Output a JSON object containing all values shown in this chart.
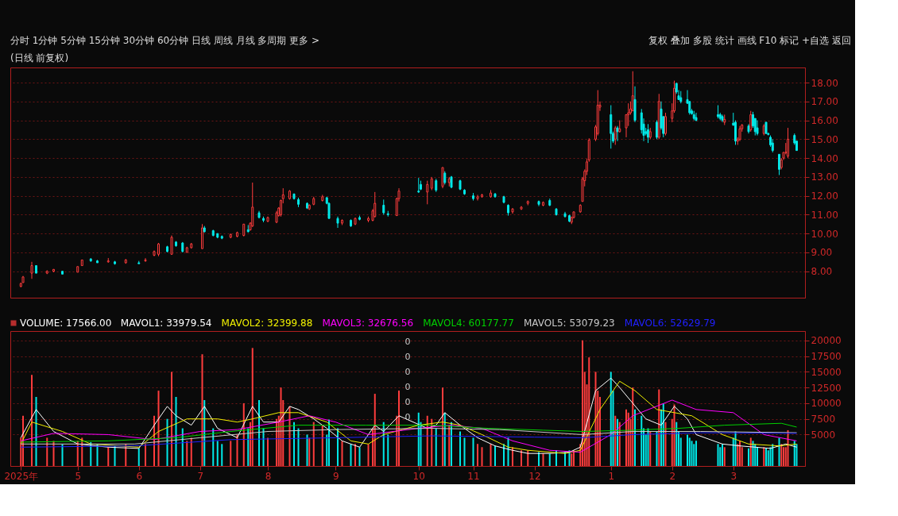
{
  "chart_data": [
    {
      "type": "candlestick",
      "title": "(日线 前复权)",
      "annotations": [
        "分时  1分钟  5分钟  15分钟  30分钟  60分钟  日线  周线  月线  多周期  更多 >",
        "复权  叠加  多股  统计  画线  F10  标记  +自选  返回"
      ],
      "colors": [
        "#ff3c3c",
        "#ff3c3c",
        "#ff3c3c",
        "#00e8e8",
        "#ff3c3c",
        "#ff3c3c",
        "#00e8e8",
        "#ff3c3c",
        "#ff3c3c",
        "#00e8e8",
        "#00e8e8",
        "#ff3c3c",
        "#00e8e8",
        "#ff3c3c",
        "#00e8e8",
        "#ff3c3c",
        "#ff3c3c",
        "#ff3c3c",
        "#00e8e8",
        "#ff3c3c",
        "#00e8e8",
        "#00e8e8",
        "#ff3c3c",
        "#ff3c3c",
        "#ff3c3c",
        "#00e8e8",
        "#00e8e8",
        "#00e8e8",
        "#00e8e8",
        "#ff3c3c",
        "#ff3c3c",
        "#ff3c3c",
        "#00e8e8",
        "#ff3c3c",
        "#ff3c3c",
        "#00e8e8",
        "#00e8e8",
        "#ff3c3c",
        "#ff3c3c",
        "#ff3c3c",
        "#ff3c3c",
        "#ff3c3c",
        "#ff3c3c",
        "#00e8e8",
        "#00e8e8",
        "#00e8e8",
        "#ff3c3c",
        "#ff3c3c",
        "#ff3c3c",
        "#00e8e8",
        "#00e8e8",
        "#00e8e8",
        "#ff3c3c",
        "#00e8e8",
        "#ff3c3c",
        "#00e8e8",
        "#ff3c3c",
        "#ff3c3c",
        "#ff3c3c",
        "#00e8e8",
        "#00e8e8",
        "#ff3c3c",
        "#ff3c3c",
        "#00e8e8",
        "#00e8e8",
        "#ff3c3c",
        "#ff3c3c",
        "#00e8e8",
        "#ff3c3c",
        "#00e8e8",
        "#ff3c3c",
        "#00e8e8",
        "#00e8e8",
        "#00e8e8",
        "#00e8e8",
        "#ff3c3c",
        "#ff3c3c",
        "#ff3c3c",
        "#00e8e8",
        "#00e8e8",
        "#00e8e8",
        "#ff3c3c",
        "#ff3c3c",
        "#ff3c3c",
        "#00e8e8",
        "#ff3c3c",
        "#00e8e8",
        "#00e8e8",
        "#00e8e8",
        "#00e8e8",
        "#ff3c3c",
        "#ff3c3c",
        "#ff3c3c",
        "#ff3c3c",
        "#ff3c3c",
        "#ff3c3c",
        "#ff3c3c",
        "#ff3c3c",
        "#ff3c3c",
        "#ff3c3c",
        "#00e8e8",
        "#00e8e8",
        "#ff3c3c",
        "#00e8e8",
        "#ff3c3c",
        "#ff3c3c",
        "#ff3c3c",
        "#ff3c3c",
        "#ff3c3c",
        "#00e8e8",
        "#00e8e8",
        "#00e8e8",
        "#00e8e8",
        "#00e8e8",
        "#ff3c3c",
        "#00e8e8",
        "#ff3c3c",
        "#00e8e8",
        "#00e8e8",
        "#ff3c3c",
        "#ff3c3c",
        "#ff3c3c",
        "#00e8e8",
        "#00e8e8",
        "#00e8e8",
        "#00e8e8",
        "#00e8e8",
        "#00e8e8",
        "#00e8e8",
        "#00e8e8",
        "#00e8e8",
        "#00e8e8",
        "#00e8e8",
        "#ff3c3c",
        "#00e8e8",
        "#00e8e8",
        "#ff3c3c",
        "#ff3c3c",
        "#ff3c3c",
        "#00e8e8",
        "#ff3c3c",
        "#00e8e8",
        "#00e8e8",
        "#00e8e8",
        "#ff3c3c",
        "#00e8e8",
        "#00e8e8",
        "#00e8e8",
        "#00e8e8",
        "#00e8e8",
        "#ff3c3c",
        "#ff3c3c",
        "#ff3c3c",
        "#ff3c3c",
        "#00e8e8",
        "#00e8e8"
      ],
      "x": [
        "2025-04-10",
        "2025-04-11",
        "2025-04-15",
        "2025-04-17",
        "2025-04-22",
        "2025-04-25",
        "2025-04-29",
        "2025-05-06",
        "2025-05-08",
        "2025-05-12",
        "2025-05-15",
        "2025-05-20",
        "2025-05-23",
        "2025-05-28",
        "2025-06-03",
        "2025-06-06",
        "2025-06-10",
        "2025-06-12",
        "2025-06-16",
        "2025-06-18",
        "2025-06-20",
        "2025-06-23",
        "2025-06-25",
        "2025-06-27",
        "2025-07-02",
        "2025-07-03",
        "2025-07-07",
        "2025-07-09",
        "2025-07-11",
        "2025-07-15",
        "2025-07-18",
        "2025-07-21",
        "2025-07-23",
        "2025-07-24",
        "2025-07-25",
        "2025-07-28",
        "2025-07-30",
        "2025-08-01",
        "2025-08-05",
        "2025-08-06",
        "2025-08-07",
        "2025-08-08",
        "2025-08-11",
        "2025-08-13",
        "2025-08-15",
        "2025-08-19",
        "2025-08-20",
        "2025-08-22",
        "2025-08-26",
        "2025-08-28",
        "2025-08-29",
        "2025-09-02",
        "2025-09-04",
        "2025-09-08",
        "2025-09-10",
        "2025-09-12",
        "2025-09-16",
        "2025-09-18",
        "2025-09-19",
        "2025-09-23",
        "2025-09-25",
        "2025-09-29",
        "2025-09-30",
        "2025-10-09",
        "2025-10-10",
        "2025-10-13",
        "2025-10-15",
        "2025-10-17",
        "2025-10-20",
        "2025-10-21",
        "2025-10-23",
        "2025-10-24",
        "2025-10-28",
        "2025-10-30",
        "2025-11-03",
        "2025-11-05",
        "2025-11-07",
        "2025-11-11",
        "2025-11-13",
        "2025-11-17",
        "2025-11-19",
        "2025-11-21",
        "2025-11-25",
        "2025-11-28",
        "2025-12-03",
        "2025-12-05",
        "2025-12-08",
        "2025-12-11",
        "2025-12-15",
        "2025-12-17",
        "2025-12-18",
        "2025-12-19",
        "2025-12-22",
        "2025-12-23",
        "2025-12-24",
        "2025-12-25",
        "2025-12-26",
        "2025-12-29",
        "2025-12-30",
        "2025-12-31",
        "2026-01-05",
        "2026-01-06",
        "2026-01-07",
        "2026-01-08",
        "2026-01-09",
        "2026-01-12",
        "2026-01-13",
        "2026-01-14",
        "2026-01-15",
        "2026-01-16",
        "2026-01-19",
        "2026-01-20",
        "2026-01-21",
        "2026-01-22",
        "2026-01-23",
        "2026-01-26",
        "2026-01-27",
        "2026-01-28",
        "2026-01-29",
        "2026-01-30",
        "2026-02-02",
        "2026-02-03",
        "2026-02-04",
        "2026-02-05",
        "2026-02-06",
        "2026-02-09",
        "2026-02-10",
        "2026-02-11",
        "2026-02-12",
        "2026-02-13",
        "2026-02-23",
        "2026-02-24",
        "2026-02-25",
        "2026-02-26",
        "2026-03-02",
        "2026-03-03",
        "2026-03-04",
        "2026-03-05",
        "2026-03-06",
        "2026-03-09",
        "2026-03-10",
        "2026-03-11",
        "2026-03-12",
        "2026-03-13",
        "2026-03-16",
        "2026-03-17",
        "2026-03-18",
        "2026-03-19",
        "2026-03-20",
        "2026-03-23",
        "2026-03-24",
        "2026-03-25",
        "2026-03-26",
        "2026-03-27",
        "2026-03-30",
        "2026-03-31"
      ],
      "ohlc": [
        [
          7.2,
          7.4,
          7.15,
          7.35
        ],
        [
          7.4,
          7.75,
          7.4,
          7.7
        ],
        [
          7.9,
          8.5,
          7.6,
          8.3
        ],
        [
          8.3,
          8.3,
          7.9,
          7.9
        ],
        [
          7.9,
          8.05,
          7.85,
          8.0
        ],
        [
          8.0,
          8.12,
          7.95,
          8.1
        ],
        [
          8.0,
          8.0,
          7.85,
          7.85
        ],
        [
          7.95,
          8.25,
          7.95,
          8.25
        ],
        [
          8.3,
          8.6,
          8.3,
          8.6
        ],
        [
          8.65,
          8.7,
          8.5,
          8.55
        ],
        [
          8.55,
          8.6,
          8.45,
          8.45
        ],
        [
          8.5,
          8.7,
          8.45,
          8.55
        ],
        [
          8.5,
          8.55,
          8.35,
          8.4
        ],
        [
          8.45,
          8.65,
          8.4,
          8.6
        ],
        [
          8.45,
          8.55,
          8.4,
          8.4
        ],
        [
          8.55,
          8.7,
          8.5,
          8.6
        ],
        [
          8.85,
          9.1,
          8.8,
          9.05
        ],
        [
          8.9,
          9.5,
          8.8,
          9.45
        ],
        [
          9.3,
          9.35,
          9.0,
          9.05
        ],
        [
          8.9,
          9.9,
          8.9,
          9.8
        ],
        [
          9.55,
          9.6,
          9.3,
          9.35
        ],
        [
          9.5,
          9.55,
          9.0,
          9.05
        ],
        [
          9.0,
          9.3,
          9.0,
          9.25
        ],
        [
          9.25,
          9.5,
          9.2,
          9.45
        ],
        [
          9.2,
          10.5,
          9.2,
          10.3
        ],
        [
          10.3,
          10.4,
          10.05,
          10.1
        ],
        [
          10.15,
          10.2,
          9.85,
          9.9
        ],
        [
          10.0,
          10.0,
          9.75,
          9.8
        ],
        [
          9.85,
          9.9,
          9.7,
          9.75
        ],
        [
          9.8,
          10.0,
          9.75,
          9.95
        ],
        [
          9.85,
          10.1,
          9.8,
          10.05
        ],
        [
          9.9,
          10.5,
          9.85,
          10.5
        ],
        [
          10.2,
          10.45,
          10.05,
          10.1
        ],
        [
          10.2,
          10.6,
          10.15,
          10.55
        ],
        [
          10.4,
          12.7,
          10.35,
          11.4
        ],
        [
          11.1,
          11.2,
          10.8,
          10.85
        ],
        [
          10.8,
          10.9,
          10.6,
          10.7
        ],
        [
          10.65,
          10.9,
          10.6,
          10.85
        ],
        [
          10.6,
          11.2,
          10.55,
          11.1
        ],
        [
          10.95,
          11.4,
          10.9,
          11.35
        ],
        [
          11.0,
          11.8,
          10.9,
          11.75
        ],
        [
          11.85,
          12.4,
          11.6,
          12.05
        ],
        [
          11.85,
          12.3,
          11.8,
          12.25
        ],
        [
          12.1,
          12.1,
          11.8,
          11.85
        ],
        [
          11.8,
          11.9,
          11.4,
          11.55
        ],
        [
          11.6,
          11.65,
          11.3,
          11.35
        ],
        [
          11.3,
          11.55,
          11.25,
          11.5
        ],
        [
          11.55,
          11.95,
          11.5,
          11.85
        ],
        [
          11.75,
          12.05,
          11.7,
          11.95
        ],
        [
          11.9,
          11.95,
          11.55,
          11.6
        ],
        [
          11.6,
          11.65,
          10.8,
          10.8
        ],
        [
          10.8,
          10.9,
          10.3,
          10.55
        ],
        [
          10.55,
          10.75,
          10.45,
          10.7
        ],
        [
          10.7,
          10.75,
          10.35,
          10.4
        ],
        [
          10.5,
          10.85,
          10.45,
          10.8
        ],
        [
          10.85,
          10.95,
          10.7,
          10.75
        ],
        [
          10.7,
          10.9,
          10.6,
          10.8
        ],
        [
          10.7,
          11.3,
          10.65,
          11.2
        ],
        [
          10.9,
          12.2,
          10.85,
          11.6
        ],
        [
          11.5,
          11.8,
          11.0,
          11.1
        ],
        [
          11.05,
          11.2,
          10.9,
          11.0
        ],
        [
          10.95,
          11.9,
          10.95,
          11.85
        ],
        [
          11.85,
          12.4,
          11.7,
          12.25
        ],
        [
          12.25,
          12.95,
          12.15,
          12.2
        ],
        [
          12.6,
          12.8,
          12.3,
          12.35
        ],
        [
          12.2,
          12.8,
          11.55,
          12.6
        ],
        [
          12.4,
          13.0,
          12.3,
          12.9
        ],
        [
          12.8,
          12.9,
          12.2,
          12.3
        ],
        [
          12.5,
          13.5,
          12.4,
          13.5
        ],
        [
          13.2,
          13.3,
          12.6,
          12.7
        ],
        [
          12.7,
          13.0,
          12.5,
          12.9
        ],
        [
          13.0,
          13.05,
          12.4,
          12.45
        ],
        [
          12.8,
          12.85,
          12.3,
          12.35
        ],
        [
          12.3,
          12.35,
          12.05,
          12.1
        ],
        [
          12.0,
          12.15,
          11.75,
          11.85
        ],
        [
          11.85,
          12.05,
          11.75,
          11.95
        ],
        [
          11.95,
          12.1,
          11.9,
          12.05
        ],
        [
          11.95,
          12.3,
          11.9,
          12.15
        ],
        [
          12.1,
          12.15,
          11.9,
          11.95
        ],
        [
          11.95,
          12.0,
          11.6,
          11.65
        ],
        [
          11.5,
          11.55,
          10.95,
          11.1
        ],
        [
          11.15,
          11.35,
          11.05,
          11.3
        ],
        [
          11.3,
          11.45,
          11.25,
          11.4
        ],
        [
          11.6,
          11.75,
          11.5,
          11.7
        ],
        [
          11.7,
          11.75,
          11.45,
          11.55
        ],
        [
          11.5,
          11.7,
          11.45,
          11.65
        ],
        [
          11.75,
          11.85,
          11.45,
          11.5
        ],
        [
          11.3,
          11.35,
          10.95,
          11.0
        ],
        [
          11.05,
          11.15,
          10.85,
          10.9
        ],
        [
          10.95,
          11.0,
          10.6,
          10.65
        ],
        [
          10.6,
          10.9,
          10.5,
          10.85
        ],
        [
          10.85,
          11.15,
          10.8,
          11.15
        ],
        [
          11.15,
          11.55,
          11.1,
          11.5
        ],
        [
          11.7,
          13.0,
          11.7,
          12.9
        ],
        [
          12.8,
          13.4,
          12.5,
          13.3
        ],
        [
          13.3,
          13.95,
          13.1,
          13.8
        ],
        [
          13.9,
          15.05,
          13.8,
          14.95
        ],
        [
          15.0,
          15.75,
          14.9,
          15.65
        ],
        [
          15.3,
          17.6,
          15.2,
          16.8
        ],
        [
          16.7,
          17.0,
          16.5,
          16.8
        ],
        [
          16.3,
          16.8,
          14.5,
          15.3
        ],
        [
          15.3,
          15.4,
          14.8,
          14.9
        ],
        [
          15.0,
          15.7,
          14.7,
          15.6
        ],
        [
          15.6,
          15.7,
          14.9,
          15.4
        ],
        [
          15.4,
          16.0,
          15.35,
          15.55
        ],
        [
          15.6,
          16.3,
          15.1,
          16.3
        ],
        [
          16.3,
          16.9,
          15.7,
          16.4
        ],
        [
          16.4,
          17.0,
          16.3,
          16.6
        ],
        [
          16.5,
          18.6,
          16.5,
          17.3
        ],
        [
          17.1,
          17.8,
          15.9,
          16.0
        ],
        [
          16.4,
          16.6,
          15.3,
          15.5
        ],
        [
          15.8,
          16.1,
          14.9,
          15.2
        ],
        [
          15.4,
          15.6,
          15.2,
          15.3
        ],
        [
          15.5,
          15.8,
          14.8,
          15.1
        ],
        [
          15.1,
          15.6,
          15.0,
          15.4
        ],
        [
          15.9,
          16.0,
          15.0,
          15.1
        ],
        [
          15.1,
          17.4,
          15.0,
          17.0
        ],
        [
          16.6,
          17.0,
          15.5,
          15.6
        ],
        [
          16.2,
          16.2,
          15.1,
          15.3
        ],
        [
          15.3,
          16.4,
          15.2,
          16.2
        ],
        [
          16.1,
          16.9,
          15.9,
          16.5
        ],
        [
          16.5,
          18.1,
          16.4,
          17.7
        ],
        [
          17.95,
          18.0,
          17.4,
          17.5
        ],
        [
          17.3,
          17.6,
          17.1,
          17.1
        ],
        [
          17.2,
          17.55,
          16.9,
          17.0
        ],
        [
          17.1,
          17.6,
          16.9,
          16.9
        ],
        [
          17.0,
          17.0,
          16.3,
          16.4
        ],
        [
          16.5,
          16.6,
          16.3,
          16.35
        ],
        [
          16.3,
          16.5,
          16.0,
          16.1
        ],
        [
          16.15,
          16.4,
          15.95,
          16.0
        ],
        [
          16.3,
          16.8,
          16.1,
          16.2
        ],
        [
          16.3,
          16.4,
          16.0,
          16.1
        ],
        [
          16.2,
          16.3,
          15.9,
          16.0
        ],
        [
          15.9,
          16.3,
          15.75,
          16.05
        ],
        [
          15.85,
          16.4,
          15.7,
          15.75
        ],
        [
          15.9,
          16.0,
          14.7,
          14.9
        ],
        [
          14.9,
          15.1,
          14.7,
          15.0
        ],
        [
          15.0,
          15.7,
          14.9,
          15.55
        ],
        [
          15.55,
          15.8,
          15.4,
          15.75
        ],
        [
          15.7,
          15.8,
          15.3,
          15.4
        ],
        [
          15.5,
          16.5,
          15.4,
          16.3
        ],
        [
          16.3,
          16.45,
          15.6,
          15.7
        ],
        [
          16.1,
          16.1,
          15.2,
          15.4
        ],
        [
          15.6,
          16.0,
          15.2,
          15.3
        ],
        [
          15.3,
          15.8,
          15.2,
          15.7
        ],
        [
          15.9,
          15.9,
          15.3,
          15.3
        ],
        [
          15.3,
          15.35,
          15.2,
          15.25
        ],
        [
          15.1,
          15.2,
          14.6,
          14.7
        ],
        [
          14.8,
          15.0,
          14.3,
          14.4
        ],
        [
          14.2,
          14.2,
          13.1,
          13.4
        ],
        [
          13.5,
          14.0,
          13.4,
          13.9
        ],
        [
          14.0,
          14.3,
          13.9,
          14.3
        ],
        [
          14.3,
          14.8,
          14.2,
          14.3
        ],
        [
          14.1,
          15.6,
          14.0,
          15.0
        ],
        [
          15.2,
          15.3,
          14.7,
          14.8
        ],
        [
          14.9,
          14.9,
          14.4,
          14.4
        ]
      ],
      "xlim": [
        "2025-04-07",
        "2026-04-02"
      ],
      "ylim": [
        6.6,
        18.8
      ],
      "yticks": [
        {
          "value": 8,
          "label": "8.00"
        },
        {
          "value": 9,
          "label": "9.00"
        },
        {
          "value": 10,
          "label": "10.00"
        },
        {
          "value": 11,
          "label": "11.00"
        },
        {
          "value": 12,
          "label": "12.00"
        },
        {
          "value": 13,
          "label": "13.00"
        },
        {
          "value": 14,
          "label": "14.00"
        },
        {
          "value": 15,
          "label": "15.00"
        },
        {
          "value": 16,
          "label": "16.00"
        },
        {
          "value": 17,
          "label": "17.00"
        },
        {
          "value": 18,
          "label": "18.00"
        }
      ],
      "grid": "y",
      "tick_labels": "y"
    },
    {
      "type": "bar",
      "legend": "top left",
      "annotations": [
        "0",
        "0",
        "0",
        "0",
        "0",
        "0"
      ],
      "x": [
        "2025-04-10",
        "2025-04-11",
        "2025-04-15",
        "2025-04-17",
        "2025-04-22",
        "2025-04-25",
        "2025-04-29",
        "2025-05-06",
        "2025-05-08",
        "2025-05-12",
        "2025-05-15",
        "2025-05-20",
        "2025-05-23",
        "2025-05-28",
        "2025-06-03",
        "2025-06-06",
        "2025-06-10",
        "2025-06-12",
        "2025-06-16",
        "2025-06-18",
        "2025-06-20",
        "2025-06-23",
        "2025-06-25",
        "2025-06-27",
        "2025-07-02",
        "2025-07-03",
        "2025-07-07",
        "2025-07-09",
        "2025-07-11",
        "2025-07-15",
        "2025-07-18",
        "2025-07-21",
        "2025-07-23",
        "2025-07-24",
        "2025-07-25",
        "2025-07-28",
        "2025-07-30",
        "2025-08-01",
        "2025-08-05",
        "2025-08-06",
        "2025-08-07",
        "2025-08-08",
        "2025-08-11",
        "2025-08-13",
        "2025-08-15",
        "2025-08-19",
        "2025-08-20",
        "2025-08-22",
        "2025-08-26",
        "2025-08-28",
        "2025-08-29",
        "2025-09-02",
        "2025-09-04",
        "2025-09-08",
        "2025-09-10",
        "2025-09-12",
        "2025-09-16",
        "2025-09-18",
        "2025-09-19",
        "2025-09-23",
        "2025-09-25",
        "2025-09-29",
        "2025-09-30",
        "2025-10-09",
        "2025-10-10",
        "2025-10-13",
        "2025-10-15",
        "2025-10-17",
        "2025-10-20",
        "2025-10-21",
        "2025-10-23",
        "2025-10-24",
        "2025-10-28",
        "2025-10-30",
        "2025-11-03",
        "2025-11-05",
        "2025-11-07",
        "2025-11-11",
        "2025-11-13",
        "2025-11-17",
        "2025-11-19",
        "2025-11-21",
        "2025-11-25",
        "2025-11-28",
        "2025-12-03",
        "2025-12-05",
        "2025-12-08",
        "2025-12-11",
        "2025-12-15",
        "2025-12-17",
        "2025-12-18",
        "2025-12-19",
        "2025-12-22",
        "2025-12-23",
        "2025-12-24",
        "2025-12-25",
        "2025-12-26",
        "2025-12-29",
        "2025-12-30",
        "2025-12-31",
        "2026-01-05",
        "2026-01-06",
        "2026-01-07",
        "2026-01-08",
        "2026-01-09",
        "2026-01-12",
        "2026-01-13",
        "2026-01-14",
        "2026-01-15",
        "2026-01-16",
        "2026-01-19",
        "2026-01-20",
        "2026-01-21",
        "2026-01-22",
        "2026-01-23",
        "2026-01-26",
        "2026-01-27",
        "2026-01-28",
        "2026-01-29",
        "2026-01-30",
        "2026-02-02",
        "2026-02-03",
        "2026-02-04",
        "2026-02-05",
        "2026-02-06",
        "2026-02-09",
        "2026-02-10",
        "2026-02-11",
        "2026-02-12",
        "2026-02-13",
        "2026-02-23",
        "2026-02-24",
        "2026-02-25",
        "2026-02-26",
        "2026-03-02",
        "2026-03-03",
        "2026-03-04",
        "2026-03-05",
        "2026-03-06",
        "2026-03-09",
        "2026-03-10",
        "2026-03-11",
        "2026-03-12",
        "2026-03-13",
        "2026-03-16",
        "2026-03-17",
        "2026-03-18",
        "2026-03-19",
        "2026-03-20",
        "2026-03-23",
        "2026-03-24",
        "2026-03-25",
        "2026-03-26",
        "2026-03-27",
        "2026-03-30",
        "2026-03-31"
      ],
      "series": [
        {
          "name": "VOLUME: 17566.00",
          "values": [
            4500,
            8000,
            14500,
            11000,
            4500,
            4000,
            3500,
            4000,
            4500,
            3800,
            3500,
            3000,
            3200,
            3500,
            2800,
            3500,
            8000,
            12000,
            7500,
            15000,
            11000,
            6000,
            4000,
            4500,
            17800,
            10500,
            6000,
            4000,
            3500,
            4000,
            5000,
            10000,
            6000,
            7000,
            18800,
            10500,
            6000,
            4500,
            7500,
            8000,
            12500,
            10500,
            9500,
            7000,
            6000,
            5000,
            4500,
            7000,
            6500,
            5000,
            7400,
            6000,
            4000,
            3500,
            3500,
            3000,
            3500,
            6000,
            11500,
            7000,
            5000,
            8000,
            12000,
            8500,
            7000,
            8000,
            7500,
            6000,
            12500,
            8500,
            6500,
            7000,
            5500,
            4500,
            4500,
            3500,
            3000,
            3500,
            3200,
            3500,
            4500,
            3000,
            2500,
            2500,
            2200,
            2000,
            2000,
            2500,
            2200,
            2500,
            2000,
            2500,
            3500,
            20000,
            15000,
            13000,
            17300,
            15000,
            12000,
            11000,
            15000,
            12000,
            8000,
            7500,
            7000,
            9000,
            8500,
            7500,
            12500,
            9000,
            8000,
            6000,
            5000,
            6000,
            5500,
            5500,
            12200,
            9000,
            10000,
            7000,
            7500,
            9800,
            7000,
            5500,
            4500,
            5000,
            4500,
            4000,
            3500,
            4000,
            3500,
            3000,
            3500,
            3000,
            4500,
            5500,
            3500,
            4000,
            3000,
            2800,
            4500,
            4000,
            3500,
            3000,
            3000,
            2800,
            2500,
            3000,
            3500,
            4500,
            3500,
            3000,
            3000,
            5700,
            4000,
            3500
          ],
          "colors": [
            "#ff3c3c",
            "#ff3c3c",
            "#ff3c3c",
            "#00e8e8",
            "#ff3c3c",
            "#ff3c3c",
            "#00e8e8",
            "#ff3c3c",
            "#ff3c3c",
            "#00e8e8",
            "#00e8e8",
            "#ff3c3c",
            "#00e8e8",
            "#ff3c3c",
            "#00e8e8",
            "#ff3c3c",
            "#ff3c3c",
            "#ff3c3c",
            "#00e8e8",
            "#ff3c3c",
            "#00e8e8",
            "#00e8e8",
            "#ff3c3c",
            "#ff3c3c",
            "#ff3c3c",
            "#00e8e8",
            "#00e8e8",
            "#00e8e8",
            "#00e8e8",
            "#ff3c3c",
            "#ff3c3c",
            "#ff3c3c",
            "#00e8e8",
            "#ff3c3c",
            "#ff3c3c",
            "#00e8e8",
            "#00e8e8",
            "#ff3c3c",
            "#ff3c3c",
            "#ff3c3c",
            "#ff3c3c",
            "#ff3c3c",
            "#ff3c3c",
            "#00e8e8",
            "#00e8e8",
            "#00e8e8",
            "#ff3c3c",
            "#ff3c3c",
            "#ff3c3c",
            "#00e8e8",
            "#00e8e8",
            "#00e8e8",
            "#ff3c3c",
            "#00e8e8",
            "#ff3c3c",
            "#00e8e8",
            "#ff3c3c",
            "#ff3c3c",
            "#ff3c3c",
            "#00e8e8",
            "#00e8e8",
            "#ff3c3c",
            "#ff3c3c",
            "#00e8e8",
            "#00e8e8",
            "#ff3c3c",
            "#ff3c3c",
            "#00e8e8",
            "#ff3c3c",
            "#00e8e8",
            "#ff3c3c",
            "#00e8e8",
            "#00e8e8",
            "#00e8e8",
            "#00e8e8",
            "#ff3c3c",
            "#ff3c3c",
            "#ff3c3c",
            "#00e8e8",
            "#00e8e8",
            "#00e8e8",
            "#ff3c3c",
            "#ff3c3c",
            "#ff3c3c",
            "#00e8e8",
            "#ff3c3c",
            "#00e8e8",
            "#00e8e8",
            "#00e8e8",
            "#00e8e8",
            "#ff3c3c",
            "#ff3c3c",
            "#ff3c3c",
            "#ff3c3c",
            "#ff3c3c",
            "#ff3c3c",
            "#ff3c3c",
            "#ff3c3c",
            "#ff3c3c",
            "#ff3c3c",
            "#00e8e8",
            "#00e8e8",
            "#ff3c3c",
            "#00e8e8",
            "#ff3c3c",
            "#ff3c3c",
            "#ff3c3c",
            "#ff3c3c",
            "#ff3c3c",
            "#00e8e8",
            "#00e8e8",
            "#00e8e8",
            "#00e8e8",
            "#00e8e8",
            "#ff3c3c",
            "#00e8e8",
            "#ff3c3c",
            "#00e8e8",
            "#00e8e8",
            "#ff3c3c",
            "#ff3c3c",
            "#ff3c3c",
            "#00e8e8",
            "#00e8e8",
            "#00e8e8",
            "#00e8e8",
            "#00e8e8",
            "#00e8e8",
            "#00e8e8",
            "#00e8e8",
            "#00e8e8",
            "#00e8e8",
            "#00e8e8",
            "#ff3c3c",
            "#00e8e8",
            "#00e8e8",
            "#ff3c3c",
            "#ff3c3c",
            "#ff3c3c",
            "#00e8e8",
            "#ff3c3c",
            "#00e8e8",
            "#00e8e8",
            "#00e8e8",
            "#ff3c3c",
            "#00e8e8",
            "#00e8e8",
            "#00e8e8",
            "#00e8e8",
            "#00e8e8",
            "#ff3c3c",
            "#ff3c3c",
            "#ff3c3c",
            "#ff3c3c",
            "#00e8e8",
            "#00e8e8"
          ]
        },
        {
          "name": "MAVOL1: 33979.54",
          "type": "line",
          "color": "#ffffff",
          "x": [
            "2025-04-10",
            "2025-04-17",
            "2025-04-25",
            "2025-05-06",
            "2025-05-20",
            "2025-06-03",
            "2025-06-10",
            "2025-06-16",
            "2025-06-20",
            "2025-06-27",
            "2025-07-03",
            "2025-07-09",
            "2025-07-18",
            "2025-07-25",
            "2025-07-30",
            "2025-08-06",
            "2025-08-11",
            "2025-08-15",
            "2025-08-22",
            "2025-08-28",
            "2025-09-04",
            "2025-09-12",
            "2025-09-19",
            "2025-09-23",
            "2025-09-30",
            "2025-10-13",
            "2025-10-17",
            "2025-10-21",
            "2025-10-28",
            "2025-11-05",
            "2025-11-13",
            "2025-11-21",
            "2025-11-28",
            "2025-12-08",
            "2025-12-17",
            "2025-12-22",
            "2025-12-29",
            "2026-01-05",
            "2026-01-09",
            "2026-01-15",
            "2026-01-21",
            "2026-01-28",
            "2026-02-03",
            "2026-02-09",
            "2026-02-13",
            "2026-02-25",
            "2026-03-05",
            "2026-03-12",
            "2026-03-19",
            "2026-03-26",
            "2026-03-31"
          ],
          "values": [
            4500,
            9000,
            5500,
            3500,
            3000,
            2800,
            6500,
            9500,
            8000,
            6500,
            9500,
            6000,
            4500,
            9500,
            7000,
            7000,
            9500,
            9000,
            7500,
            6000,
            4000,
            3000,
            6500,
            5500,
            8000,
            6000,
            6500,
            8500,
            6500,
            4500,
            3200,
            2500,
            2000,
            2000,
            2200,
            3000,
            12000,
            14000,
            12500,
            10000,
            7500,
            6500,
            9500,
            7500,
            5000,
            3500,
            3200,
            3000,
            2800,
            3500,
            3000
          ]
        },
        {
          "name": "MAVOL2: 32399.88",
          "type": "line",
          "color": "#f0f000",
          "x": [
            "2025-04-10",
            "2025-04-15",
            "2025-04-29",
            "2025-05-12",
            "2025-06-03",
            "2025-06-12",
            "2025-06-25",
            "2025-07-09",
            "2025-07-18",
            "2025-07-25",
            "2025-08-06",
            "2025-08-15",
            "2025-08-28",
            "2025-09-08",
            "2025-09-16",
            "2025-09-23",
            "2025-10-09",
            "2025-10-20",
            "2025-10-28",
            "2025-11-07",
            "2025-11-19",
            "2025-11-28",
            "2025-12-15",
            "2025-12-22",
            "2025-12-31",
            "2026-01-09",
            "2026-01-16",
            "2026-01-26",
            "2026-02-03",
            "2026-02-11",
            "2026-02-25",
            "2026-03-09",
            "2026-03-23",
            "2026-03-31"
          ],
          "values": [
            3500,
            7000,
            5500,
            3500,
            3000,
            5500,
            7500,
            7500,
            7000,
            7500,
            8500,
            8500,
            7000,
            4000,
            3500,
            5000,
            6500,
            7000,
            6500,
            5000,
            3000,
            2500,
            2000,
            2500,
            9000,
            13500,
            12000,
            9000,
            8500,
            8000,
            5000,
            3500,
            3200,
            3500
          ]
        },
        {
          "name": "MAVOL3: 32676.56",
          "type": "line",
          "color": "#ff00ff",
          "x": [
            "2025-04-10",
            "2025-04-25",
            "2025-05-20",
            "2025-06-10",
            "2025-07-01",
            "2025-07-18",
            "2025-08-06",
            "2025-08-20",
            "2025-09-01",
            "2025-09-16",
            "2025-10-09",
            "2025-10-24",
            "2025-11-07",
            "2025-11-21",
            "2025-12-08",
            "2025-12-22",
            "2026-01-05",
            "2026-01-15",
            "2026-02-02",
            "2026-02-13",
            "2026-03-02",
            "2026-03-16",
            "2026-03-31"
          ],
          "values": [
            4000,
            5200,
            5000,
            4200,
            5500,
            5800,
            7000,
            8000,
            7000,
            5000,
            6000,
            6500,
            6000,
            4000,
            2500,
            2200,
            5000,
            8000,
            10500,
            9000,
            8500,
            5000,
            4000
          ]
        },
        {
          "name": "MAVOL4: 60177.77",
          "type": "line",
          "color": "#00d000",
          "x": [
            "2025-04-10",
            "2025-05-20",
            "2025-06-20",
            "2025-07-15",
            "2025-08-15",
            "2025-09-15",
            "2025-10-15",
            "2025-11-10",
            "2025-12-05",
            "2025-12-23",
            "2026-01-15",
            "2026-02-05",
            "2026-02-26",
            "2026-03-24",
            "2026-03-31"
          ],
          "values": [
            3800,
            4000,
            4500,
            5500,
            6500,
            6500,
            6500,
            6000,
            5700,
            5500,
            5700,
            6000,
            6500,
            6800,
            6200
          ]
        },
        {
          "name": "MAVOL5: 53079.23",
          "type": "line",
          "color": "#c8c8c8",
          "x": [
            "2025-04-10",
            "2025-06-01",
            "2025-07-01",
            "2025-08-01",
            "2025-09-01",
            "2025-10-15",
            "2025-11-15",
            "2025-12-23",
            "2026-01-15",
            "2026-02-15",
            "2026-03-31"
          ],
          "values": [
            3500,
            3500,
            4500,
            5500,
            5800,
            6000,
            5800,
            5000,
            5500,
            5500,
            5300
          ]
        },
        {
          "name": "MAVOL6: 52629.79",
          "type": "line",
          "color": "#2020ff",
          "x": [
            "2025-04-10",
            "2025-06-01",
            "2025-07-15",
            "2025-09-01",
            "2025-10-15",
            "2025-12-01",
            "2025-12-23",
            "2026-01-15",
            "2026-02-15",
            "2026-03-31"
          ],
          "values": [
            3000,
            3200,
            4200,
            4500,
            4800,
            4600,
            4500,
            5000,
            5300,
            5200
          ]
        }
      ],
      "xlim": [
        "2025-04-07",
        "2026-04-02"
      ],
      "xticks": [
        {
          "value": "2025-04-10",
          "label": "2025年"
        },
        {
          "value": "2025-05-06",
          "label": "5"
        },
        {
          "value": "2025-06-03",
          "label": "6"
        },
        {
          "value": "2025-07-01",
          "label": "7"
        },
        {
          "value": "2025-08-01",
          "label": "8"
        },
        {
          "value": "2025-09-01",
          "label": "9"
        },
        {
          "value": "2025-10-09",
          "label": "10"
        },
        {
          "value": "2025-11-03",
          "label": "11"
        },
        {
          "value": "2025-12-01",
          "label": "12"
        },
        {
          "value": "2026-01-05",
          "label": "1"
        },
        {
          "value": "2026-02-02",
          "label": "2"
        },
        {
          "value": "2026-03-02",
          "label": "3"
        }
      ],
      "ylim": [
        0,
        21500
      ],
      "yticks": [
        5000,
        7500,
        10000,
        12500,
        15000,
        17500,
        20000
      ],
      "grid": "y"
    }
  ]
}
